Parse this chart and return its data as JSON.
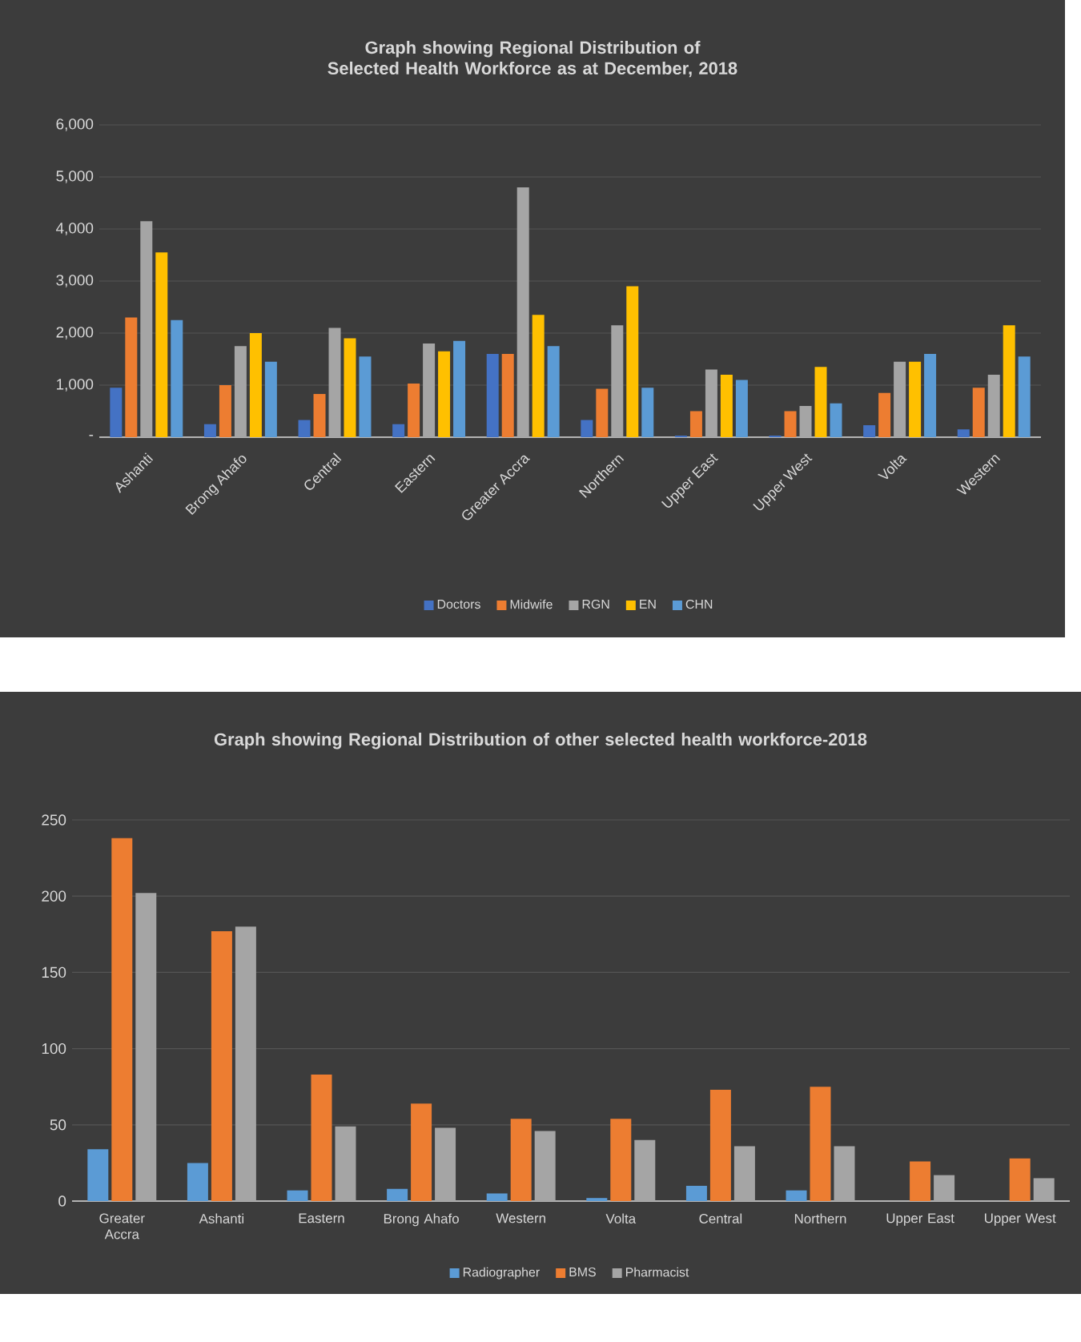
{
  "chart_data": [
    {
      "type": "bar",
      "title": "Graph showing Regional Distribution of Selected Health Workforce as at December, 2018",
      "categories": [
        "Ashanti",
        "Brong Ahafo",
        "Central",
        "Eastern",
        "Greater Accra",
        "Northern",
        "Upper East",
        "Upper West",
        "Volta",
        "Western"
      ],
      "series": [
        {
          "name": "Doctors",
          "color": "#4472c4",
          "values": [
            950,
            250,
            330,
            250,
            1600,
            330,
            30,
            30,
            230,
            150
          ]
        },
        {
          "name": "Midwife",
          "color": "#ed7d31",
          "values": [
            2300,
            1000,
            830,
            1030,
            1600,
            930,
            500,
            500,
            850,
            950
          ]
        },
        {
          "name": "RGN",
          "color": "#a5a5a5",
          "values": [
            4150,
            1750,
            2100,
            1800,
            4800,
            2150,
            1300,
            600,
            1450,
            1200
          ]
        },
        {
          "name": "EN",
          "color": "#ffc000",
          "values": [
            3550,
            2000,
            1900,
            1650,
            2350,
            2900,
            1200,
            1350,
            1450,
            2150
          ]
        },
        {
          "name": "CHN",
          "color": "#5b9bd5",
          "values": [
            2250,
            1450,
            1550,
            1850,
            1750,
            950,
            1100,
            650,
            1600,
            1550
          ]
        }
      ],
      "ylim": [
        0,
        6000
      ],
      "yticks": [
        {
          "value": 0,
          "label": "-"
        },
        {
          "value": 1000,
          "label": "1,000"
        },
        {
          "value": 2000,
          "label": "2,000"
        },
        {
          "value": 3000,
          "label": "3,000"
        },
        {
          "value": 4000,
          "label": "4,000"
        },
        {
          "value": 5000,
          "label": "5,000"
        },
        {
          "value": 6000,
          "label": "6,000"
        }
      ],
      "grid": "y",
      "legend": "bottom"
    },
    {
      "type": "bar",
      "title": "Graph showing Regional Distribution of other selected health workforce-2018",
      "categories": [
        "Greater Accra",
        "Ashanti",
        "Eastern",
        "Brong Ahafo",
        "Western",
        "Volta",
        "Central",
        "Northern",
        "Upper East",
        "Upper West"
      ],
      "series": [
        {
          "name": "Radiographer",
          "color": "#5b9bd5",
          "values": [
            34,
            25,
            7,
            8,
            5,
            2,
            10,
            7,
            0,
            0
          ]
        },
        {
          "name": "BMS",
          "color": "#ed7d31",
          "values": [
            238,
            177,
            83,
            64,
            54,
            54,
            73,
            75,
            26,
            28
          ]
        },
        {
          "name": "Pharmacist",
          "color": "#a5a5a5",
          "values": [
            202,
            180,
            49,
            48,
            46,
            40,
            36,
            36,
            17,
            15
          ]
        }
      ],
      "ylim": [
        0,
        250
      ],
      "yticks": [
        0,
        50,
        100,
        150,
        200,
        250
      ],
      "grid": "y",
      "legend": "bottom"
    }
  ]
}
